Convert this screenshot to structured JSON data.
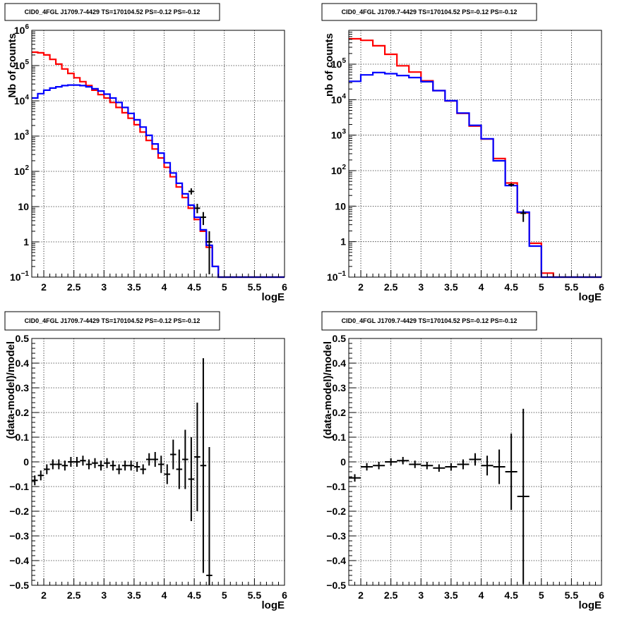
{
  "chart_data": [
    {
      "type": "histogram-step",
      "title": "CID0_4FGL J1709.7-4429 TS=170104.52 PS=-0.12 PS=-0.12",
      "xlabel": "logE",
      "ylabel": "Nb of counts",
      "xlim": [
        1.8,
        6.0
      ],
      "ylim": [
        0.1,
        1000000
      ],
      "yscale": "log",
      "grid": true,
      "x_ticks": [
        "2",
        "2.5",
        "3",
        "3.5",
        "4",
        "4.5",
        "5",
        "5.5",
        "6"
      ],
      "y_ticks": [
        {
          "value": 0.1,
          "base": "10",
          "exp": "−1"
        },
        {
          "value": 1,
          "label": "1"
        },
        {
          "value": 10,
          "label": "10"
        },
        {
          "value": 100,
          "base": "10",
          "exp": "2"
        },
        {
          "value": 1000,
          "base": "10",
          "exp": "3"
        },
        {
          "value": 10000,
          "base": "10",
          "exp": "4"
        },
        {
          "value": 100000,
          "base": "10",
          "exp": "5"
        },
        {
          "value": 1000000,
          "base": "10",
          "exp": "6"
        }
      ],
      "bin_edges": [
        1.8,
        1.9,
        2.0,
        2.1,
        2.2,
        2.3,
        2.4,
        2.5,
        2.6,
        2.7,
        2.8,
        2.9,
        3.0,
        3.1,
        3.2,
        3.3,
        3.4,
        3.5,
        3.6,
        3.7,
        3.8,
        3.9,
        4.0,
        4.1,
        4.2,
        4.3,
        4.4,
        4.5,
        4.6,
        4.7,
        4.8,
        4.9,
        5.0,
        5.1,
        5.2,
        5.3,
        5.4,
        5.5,
        5.6,
        5.7,
        5.8,
        5.9,
        6.0
      ],
      "series": [
        {
          "color": "#ff0000",
          "values": [
            240000,
            230000,
            200000,
            150000,
            110000,
            80000,
            60000,
            45000,
            35000,
            27000,
            20000,
            15000,
            12000,
            9000,
            6500,
            4600,
            3200,
            2100,
            1300,
            750,
            430,
            240,
            130,
            70,
            36,
            18,
            9,
            4.3,
            2,
            0.7,
            0.2,
            0.1,
            0.1,
            0.1,
            0.1,
            0.1,
            0.1,
            0.1,
            0.1,
            0.1,
            0.1,
            0.1
          ]
        },
        {
          "color": "#0000ff",
          "values": [
            12000,
            16000,
            20000,
            23000,
            25000,
            27000,
            28000,
            28000,
            27000,
            25000,
            22000,
            19000,
            15500,
            12000,
            9000,
            6500,
            4400,
            2900,
            1800,
            1050,
            600,
            330,
            175,
            90,
            46,
            23,
            11,
            5,
            2.2,
            0.8,
            0.2,
            0.1,
            0.1,
            0.1,
            0.1,
            0.1,
            0.1,
            0.1,
            0.1,
            0.1,
            0.1,
            0.1
          ]
        }
      ],
      "data_points": [
        {
          "x": 4.45,
          "y": 27,
          "yerr": [
            22,
            33
          ]
        },
        {
          "x": 4.55,
          "y": 9,
          "yerr": [
            6.5,
            12
          ]
        },
        {
          "x": 4.65,
          "y": 5,
          "yerr": [
            3,
            7
          ]
        },
        {
          "x": 4.75,
          "y": 1,
          "yerr": [
            0.12,
            2
          ]
        }
      ]
    },
    {
      "type": "histogram-step",
      "title": "CID0_4FGL J1709.7-4429 TS=170104.52 PS=-0.12 PS=-0.12",
      "xlabel": "logE",
      "ylabel": "nb of counts",
      "xlim": [
        1.8,
        6.0
      ],
      "ylim": [
        0.1,
        900000
      ],
      "yscale": "log",
      "grid": true,
      "x_ticks": [
        "2",
        "2.5",
        "3",
        "3.5",
        "4",
        "4.5",
        "5",
        "5.5",
        "6"
      ],
      "y_ticks": [
        {
          "value": 0.1,
          "base": "10",
          "exp": "−1"
        },
        {
          "value": 1,
          "label": "1"
        },
        {
          "value": 10,
          "label": "10"
        },
        {
          "value": 100,
          "base": "10",
          "exp": "2"
        },
        {
          "value": 1000,
          "base": "10",
          "exp": "3"
        },
        {
          "value": 10000,
          "base": "10",
          "exp": "4"
        },
        {
          "value": 100000,
          "base": "10",
          "exp": "5"
        }
      ],
      "bin_edges": [
        1.8,
        2.0,
        2.2,
        2.4,
        2.6,
        2.8,
        3.0,
        3.2,
        3.4,
        3.6,
        3.8,
        4.0,
        4.2,
        4.4,
        4.6,
        4.8,
        5.0,
        5.2,
        5.4,
        5.6,
        5.8,
        6.0
      ],
      "series": [
        {
          "color": "#ff0000",
          "values": [
            520000,
            470000,
            330000,
            190000,
            90000,
            60000,
            34000,
            18000,
            9200,
            4100,
            1800,
            780,
            220,
            45,
            6.5,
            0.9,
            0.13,
            0.1,
            0.1,
            0.1,
            0.1
          ]
        },
        {
          "color": "#0000ff",
          "values": [
            33000,
            50000,
            58000,
            54000,
            48000,
            42000,
            32000,
            18000,
            9300,
            4200,
            1900,
            790,
            190,
            38,
            6.8,
            0.75,
            0.1,
            0.1,
            0.1,
            0.1,
            0.1
          ]
        }
      ],
      "data_points": [
        {
          "x": 4.5,
          "y": 40,
          "yerr": [
            36,
            44
          ]
        },
        {
          "x": 4.7,
          "y": 6.3,
          "yerr": [
            3.6,
            8
          ]
        }
      ]
    },
    {
      "type": "scatter-errorbars",
      "title": "CID0_4FGL J1709.7-4429 TS=170104.52 PS=-0.12 PS=-0.12",
      "xlabel": "logE",
      "ylabel": "(data-model)/model",
      "xlim": [
        1.8,
        6.0
      ],
      "ylim": [
        -0.5,
        0.5
      ],
      "grid": true,
      "x_ticks": [
        "2",
        "2.5",
        "3",
        "3.5",
        "4",
        "4.5",
        "5",
        "5.5",
        "6"
      ],
      "y_ticks": [
        "−0.5",
        "−0.4",
        "−0.3",
        "−0.2",
        "−0.1",
        "0",
        "0.1",
        "0.2",
        "0.3",
        "0.4",
        "0.5"
      ],
      "points": [
        {
          "x": 1.85,
          "y": -0.075,
          "xerr": 0.05,
          "yerr": 0.02
        },
        {
          "x": 1.95,
          "y": -0.055,
          "xerr": 0.05,
          "yerr": 0.02
        },
        {
          "x": 2.05,
          "y": -0.03,
          "xerr": 0.05,
          "yerr": 0.02
        },
        {
          "x": 2.15,
          "y": -0.01,
          "xerr": 0.05,
          "yerr": 0.02
        },
        {
          "x": 2.25,
          "y": -0.01,
          "xerr": 0.05,
          "yerr": 0.02
        },
        {
          "x": 2.35,
          "y": -0.015,
          "xerr": 0.05,
          "yerr": 0.02
        },
        {
          "x": 2.45,
          "y": 0.0,
          "xerr": 0.05,
          "yerr": 0.02
        },
        {
          "x": 2.55,
          "y": 0.0,
          "xerr": 0.05,
          "yerr": 0.02
        },
        {
          "x": 2.65,
          "y": 0.005,
          "xerr": 0.05,
          "yerr": 0.02
        },
        {
          "x": 2.75,
          "y": -0.01,
          "xerr": 0.05,
          "yerr": 0.02
        },
        {
          "x": 2.85,
          "y": -0.005,
          "xerr": 0.05,
          "yerr": 0.02
        },
        {
          "x": 2.95,
          "y": -0.015,
          "xerr": 0.05,
          "yerr": 0.02
        },
        {
          "x": 3.05,
          "y": -0.005,
          "xerr": 0.05,
          "yerr": 0.02
        },
        {
          "x": 3.15,
          "y": -0.015,
          "xerr": 0.05,
          "yerr": 0.02
        },
        {
          "x": 3.25,
          "y": -0.03,
          "xerr": 0.05,
          "yerr": 0.02
        },
        {
          "x": 3.35,
          "y": -0.015,
          "xerr": 0.05,
          "yerr": 0.02
        },
        {
          "x": 3.45,
          "y": -0.015,
          "xerr": 0.05,
          "yerr": 0.02
        },
        {
          "x": 3.55,
          "y": -0.02,
          "xerr": 0.05,
          "yerr": 0.02
        },
        {
          "x": 3.65,
          "y": -0.03,
          "xerr": 0.05,
          "yerr": 0.02
        },
        {
          "x": 3.75,
          "y": 0.01,
          "xerr": 0.05,
          "yerr": 0.025
        },
        {
          "x": 3.85,
          "y": 0.01,
          "xerr": 0.05,
          "yerr": 0.03
        },
        {
          "x": 3.95,
          "y": -0.01,
          "xerr": 0.05,
          "yerr": 0.035
        },
        {
          "x": 4.05,
          "y": -0.05,
          "xerr": 0.05,
          "yerr": 0.04
        },
        {
          "x": 4.15,
          "y": 0.03,
          "xerr": 0.05,
          "yerr": 0.06
        },
        {
          "x": 4.25,
          "y": -0.03,
          "xerr": 0.05,
          "yerr": 0.08
        },
        {
          "x": 4.35,
          "y": 0.01,
          "xerr": 0.05,
          "yerr": 0.12
        },
        {
          "x": 4.45,
          "y": -0.07,
          "xerr": 0.05,
          "yerr": 0.17
        },
        {
          "x": 4.55,
          "y": 0.02,
          "xerr": 0.05,
          "yerr": 0.22
        },
        {
          "x": 4.65,
          "y": -0.015,
          "xerr": 0.05,
          "yerr": 0.435
        },
        {
          "x": 4.75,
          "y": -0.46,
          "xerr": 0.05,
          "yerr": [
            0.04,
            0.52
          ]
        }
      ]
    },
    {
      "type": "scatter-errorbars",
      "title": "CID0_4FGL J1709.7-4429 TS=170104.52 PS=-0.12 PS=-0.12",
      "xlabel": "logE",
      "ylabel": "(data-model)/model",
      "xlim": [
        1.8,
        6.0
      ],
      "ylim": [
        -0.5,
        0.5
      ],
      "grid": true,
      "x_ticks": [
        "2",
        "2.5",
        "3",
        "3.5",
        "4",
        "4.5",
        "5",
        "5.5",
        "6"
      ],
      "y_ticks": [
        "−0.5",
        "−0.4",
        "−0.3",
        "−0.2",
        "−0.1",
        "0",
        "0.1",
        "0.2",
        "0.3",
        "0.4",
        "0.5"
      ],
      "points": [
        {
          "x": 1.9,
          "y": -0.065,
          "xerr": 0.1,
          "yerr": 0.015
        },
        {
          "x": 2.1,
          "y": -0.02,
          "xerr": 0.1,
          "yerr": 0.015
        },
        {
          "x": 2.3,
          "y": -0.015,
          "xerr": 0.1,
          "yerr": 0.015
        },
        {
          "x": 2.5,
          "y": 0.0,
          "xerr": 0.1,
          "yerr": 0.015
        },
        {
          "x": 2.7,
          "y": 0.005,
          "xerr": 0.1,
          "yerr": 0.015
        },
        {
          "x": 2.9,
          "y": -0.01,
          "xerr": 0.1,
          "yerr": 0.015
        },
        {
          "x": 3.1,
          "y": -0.015,
          "xerr": 0.1,
          "yerr": 0.015
        },
        {
          "x": 3.3,
          "y": -0.025,
          "xerr": 0.1,
          "yerr": 0.015
        },
        {
          "x": 3.5,
          "y": -0.02,
          "xerr": 0.1,
          "yerr": 0.015
        },
        {
          "x": 3.7,
          "y": -0.01,
          "xerr": 0.1,
          "yerr": 0.02
        },
        {
          "x": 3.9,
          "y": 0.01,
          "xerr": 0.1,
          "yerr": 0.025
        },
        {
          "x": 4.1,
          "y": -0.015,
          "xerr": 0.1,
          "yerr": 0.04
        },
        {
          "x": 4.3,
          "y": -0.02,
          "xerr": 0.1,
          "yerr": 0.07
        },
        {
          "x": 4.5,
          "y": -0.04,
          "xerr": 0.1,
          "yerr": 0.155
        },
        {
          "x": 4.7,
          "y": -0.14,
          "xerr": 0.1,
          "yerr": 0.355
        }
      ]
    }
  ]
}
